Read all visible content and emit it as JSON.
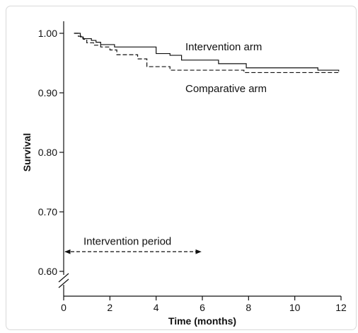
{
  "chart_data": {
    "type": "line",
    "title": "",
    "xlabel": "Time (months)",
    "ylabel": "Survival",
    "xlim": [
      0,
      12
    ],
    "ylim": [
      0.6,
      1.0
    ],
    "x_ticks": [
      0,
      2,
      4,
      6,
      8,
      10,
      12
    ],
    "y_ticks": [
      0.6,
      0.7,
      0.8,
      0.9,
      1.0
    ],
    "x_tick_labels": [
      "0",
      "2",
      "4",
      "6",
      "8",
      "10",
      "12"
    ],
    "y_tick_labels": [
      "0.60",
      "0.70",
      "0.80",
      "0.90",
      "1.00"
    ],
    "y_axis_break": true,
    "grid": false,
    "series": [
      {
        "name": "Intervention arm",
        "style": "solid",
        "x": [
          0.45,
          0.72,
          0.83,
          1.2,
          1.4,
          1.6,
          2.2,
          4.0,
          4.6,
          5.1,
          6.7,
          7.9,
          11.0,
          11.9
        ],
        "y": [
          1.0,
          0.994,
          0.991,
          0.988,
          0.985,
          0.981,
          0.977,
          0.966,
          0.963,
          0.955,
          0.949,
          0.942,
          0.938,
          0.936
        ]
      },
      {
        "name": "Comparative arm",
        "style": "dashed",
        "x": [
          0.45,
          0.63,
          0.85,
          1.0,
          1.3,
          1.6,
          2.0,
          2.3,
          3.2,
          3.6,
          4.6,
          7.8,
          11.9
        ],
        "y": [
          1.0,
          0.995,
          0.99,
          0.984,
          0.98,
          0.977,
          0.972,
          0.964,
          0.957,
          0.944,
          0.938,
          0.934,
          0.932
        ]
      }
    ],
    "annotations": [
      {
        "text": "Intervention arm",
        "at_series": "Intervention arm"
      },
      {
        "text": "Comparative arm",
        "at_series": "Comparative arm"
      },
      {
        "text": "Intervention period",
        "x_from": 0,
        "x_to": 6,
        "arrow": "both",
        "style": "dashed",
        "y": 0.633
      }
    ]
  }
}
